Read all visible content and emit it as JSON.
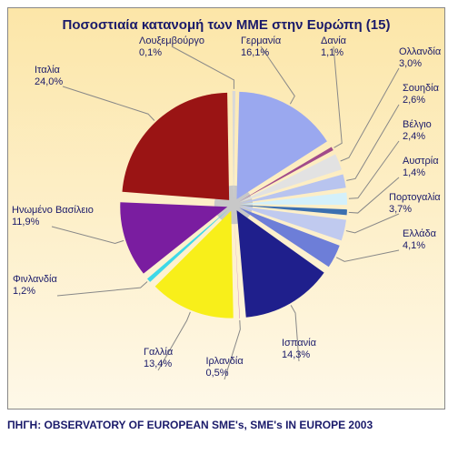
{
  "title": "Ποσοστιαία  κατανομή  των ΜΜΕ στην Ευρώπη (15)",
  "source": "ΠΗΓΗ: OBSERVATORY OF EUROPEAN SME's, SME's IN EUROPE 2003",
  "chart": {
    "type": "pie",
    "background_gradient": [
      "#fce6a8",
      "#fef8e8"
    ],
    "center_color": "#c8c8c8",
    "frame_border": "#888888",
    "label_color": "#1a1a6a",
    "title_fontsize": 15,
    "label_fontsize": 11,
    "start_angle_deg": -90,
    "slice_gap_deg": 2,
    "pull_out": 0.06,
    "slices": [
      {
        "label": "Λουξεμβούργο",
        "value": 0.1,
        "pct_text": "0,1%",
        "color": "#d8d8d8"
      },
      {
        "label": "Γερμανία",
        "value": 16.1,
        "pct_text": "16,1%",
        "color": "#9aa8ef"
      },
      {
        "label": "Δανία",
        "value": 1.1,
        "pct_text": "1,1%",
        "color": "#a24b8a"
      },
      {
        "label": "Ολλανδία",
        "value": 3.0,
        "pct_text": "3,0%",
        "color": "#e2e2e2"
      },
      {
        "label": "Σουηδία",
        "value": 2.6,
        "pct_text": "2,6%",
        "color": "#b8c4ef"
      },
      {
        "label": "Βέλγιο",
        "value": 2.4,
        "pct_text": "2,4%",
        "color": "#d4f0fa"
      },
      {
        "label": "Αυστρία",
        "value": 1.4,
        "pct_text": "1,4%",
        "color": "#3b6fb0"
      },
      {
        "label": "Πορτογαλία",
        "value": 3.7,
        "pct_text": "3,7%",
        "color": "#c0caef"
      },
      {
        "label": "Ελλάδα",
        "value": 4.1,
        "pct_text": "4,1%",
        "color": "#6d7ed8"
      },
      {
        "label": "Ισπανία",
        "value": 14.3,
        "pct_text": "14,3%",
        "color": "#1f1f8c"
      },
      {
        "label": "Ιρλανδία",
        "value": 0.5,
        "pct_text": "0,5%",
        "color": "#c55fb0"
      },
      {
        "label": "Γαλλία",
        "value": 13.4,
        "pct_text": "13,4%",
        "color": "#f8ef1a"
      },
      {
        "label": "Φινλανδία",
        "value": 1.2,
        "pct_text": "1,2%",
        "color": "#3ed8e8"
      },
      {
        "label": "Ηνωμένο Βασίλειο",
        "value": 11.9,
        "pct_text": "11,9%",
        "color": "#7a1da0"
      },
      {
        "label": "Ιταλία",
        "value": 24.0,
        "pct_text": "24,0%",
        "color": "#9a1414"
      }
    ]
  }
}
